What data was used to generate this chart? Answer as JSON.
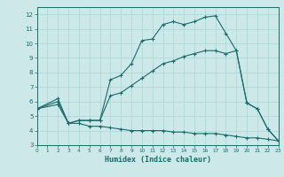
{
  "title": "",
  "xlabel": "Humidex (Indice chaleur)",
  "bg_color": "#cce8e8",
  "line_color": "#1a6b6b",
  "grid_color": "#a8d8d8",
  "xlim": [
    0,
    23
  ],
  "ylim": [
    3,
    12.5
  ],
  "xticks": [
    0,
    1,
    2,
    3,
    4,
    5,
    6,
    7,
    8,
    9,
    10,
    11,
    12,
    13,
    14,
    15,
    16,
    17,
    18,
    19,
    20,
    21,
    22,
    23
  ],
  "yticks": [
    3,
    4,
    5,
    6,
    7,
    8,
    9,
    10,
    11,
    12
  ],
  "curve1_x": [
    0,
    2,
    3,
    4,
    5,
    6,
    7,
    8,
    9,
    10,
    11,
    12,
    13,
    14,
    15,
    16,
    17,
    18,
    19,
    20,
    21,
    22,
    23
  ],
  "curve1_y": [
    5.5,
    6.2,
    4.5,
    4.7,
    4.7,
    4.7,
    7.5,
    7.8,
    8.6,
    10.2,
    10.3,
    11.3,
    11.5,
    11.3,
    11.5,
    11.8,
    11.9,
    10.7,
    9.5,
    5.9,
    5.5,
    4.1,
    3.3
  ],
  "curve2_x": [
    0,
    2,
    3,
    4,
    5,
    6,
    7,
    8,
    9,
    10,
    11,
    12,
    13,
    14,
    15,
    16,
    17,
    18,
    19,
    20,
    21,
    22,
    23
  ],
  "curve2_y": [
    5.5,
    6.0,
    4.5,
    4.7,
    4.7,
    4.7,
    6.4,
    6.6,
    7.1,
    7.6,
    8.1,
    8.6,
    8.8,
    9.1,
    9.3,
    9.5,
    9.5,
    9.3,
    9.5,
    5.9,
    5.5,
    4.1,
    3.3
  ],
  "curve3_x": [
    0,
    2,
    3,
    4,
    5,
    6,
    7,
    8,
    9,
    10,
    11,
    12,
    13,
    14,
    15,
    16,
    17,
    18,
    19,
    20,
    21,
    22,
    23
  ],
  "curve3_y": [
    5.5,
    5.8,
    4.5,
    4.5,
    4.3,
    4.3,
    4.2,
    4.1,
    4.0,
    4.0,
    4.0,
    4.0,
    3.9,
    3.9,
    3.8,
    3.8,
    3.8,
    3.7,
    3.6,
    3.5,
    3.5,
    3.4,
    3.3
  ]
}
